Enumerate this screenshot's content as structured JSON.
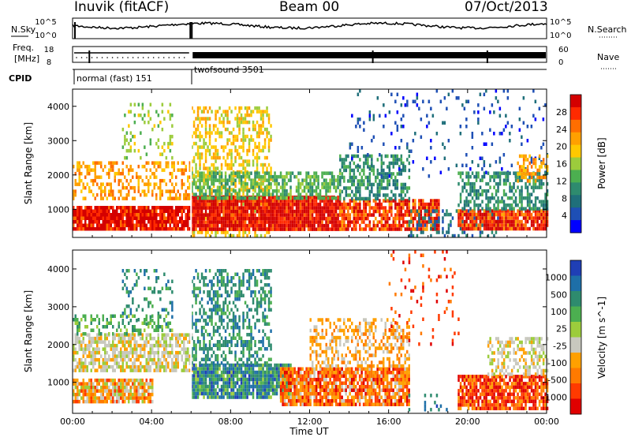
{
  "header": {
    "station": "Inuvik (fitACF)",
    "beam": "Beam 00",
    "date": "07/Oct/2013"
  },
  "panels": {
    "nsky": {
      "label": "N.Sky",
      "y_ticks": [
        "10^5",
        "10^0"
      ],
      "right_ticks": [
        "10^5",
        "10^0"
      ],
      "right_label": "N.Search"
    },
    "freq": {
      "label_line1": "Freq.",
      "label_line2": "[MHz]",
      "y_ticks": [
        "18",
        "8"
      ],
      "right_ticks": [
        "60",
        "0"
      ],
      "right_label": "Nave"
    },
    "cpid": {
      "label": "CPID",
      "segments": [
        {
          "label": "normal (fast) 151",
          "start_hour": 0.0,
          "end_hour": 6.0
        },
        {
          "label": "twofsound 3501",
          "start_hour": 6.0,
          "end_hour": 24.0
        }
      ]
    }
  },
  "chart_data": [
    {
      "type": "heatmap",
      "name": "power",
      "ylabel": "Slant Range [km]",
      "ylim": [
        180,
        4500
      ],
      "yticks": [
        1000,
        2000,
        3000,
        4000
      ],
      "colorbar": {
        "label": "Power [dB]",
        "tick_labels": [
          "28",
          "24",
          "20",
          "16",
          "12",
          "8",
          "4"
        ],
        "colors": [
          "#d40000",
          "#ff2a00",
          "#ff6e00",
          "#ffa000",
          "#ffc800",
          "#9ccc3c",
          "#4caf50",
          "#2e8b6e",
          "#1f6f7a",
          "#1e4fb5",
          "#0000ff"
        ]
      }
    },
    {
      "type": "heatmap",
      "name": "velocity",
      "ylabel": "Slant Range [km]",
      "ylim": [
        180,
        4500
      ],
      "yticks": [
        1000,
        2000,
        3000,
        4000
      ],
      "colorbar": {
        "label": "Velocity [m s^-1]",
        "tick_labels": [
          "1000",
          "500",
          "100",
          "25",
          "-25",
          "-100",
          "-500",
          "-1000"
        ],
        "colors": [
          "#1f3fb5",
          "#1e6fa8",
          "#2e8b6e",
          "#4caf50",
          "#9ccc3c",
          "#c8c8be",
          "#ffa000",
          "#ff7a00",
          "#ff3a00",
          "#e00000"
        ]
      }
    }
  ],
  "xaxis": {
    "label": "Time UT",
    "xlim": [
      0,
      24
    ],
    "tick_labels": [
      "00:00",
      "04:00",
      "08:00",
      "12:00",
      "16:00",
      "20:00",
      "00:00"
    ]
  }
}
